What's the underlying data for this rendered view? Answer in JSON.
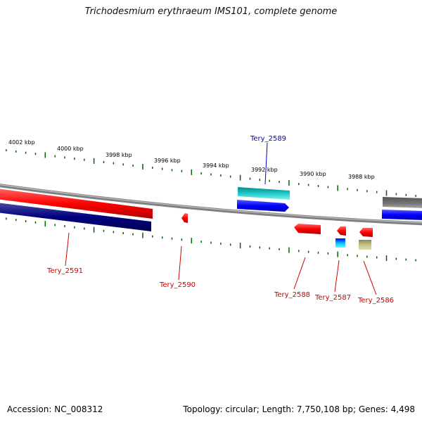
{
  "title": "Trichodesmium erythraeum IMS101, complete genome",
  "scale": {
    "labels": [
      "4002 kbp",
      "4000 kbp",
      "3998 kbp",
      "3996 kbp",
      "3994 kbp",
      "3992 kbp",
      "3990 kbp",
      "3988 kbp"
    ],
    "tick_color": "#006400"
  },
  "backbone_color": "#808080",
  "genes": [
    {
      "label": "Tery_2591",
      "strand": "reverse",
      "color": "#ff0000",
      "label_color": "#cc0000"
    },
    {
      "label": "Tery_2590",
      "strand": "reverse",
      "color": "#ff0000",
      "label_color": "#cc0000"
    },
    {
      "label": "Tery_2589",
      "strand": "forward",
      "color": "#00cccc",
      "label_color": "#0000cc"
    },
    {
      "label": "Tery_2588",
      "strand": "reverse",
      "color": "#ff0000",
      "label_color": "#cc0000"
    },
    {
      "label": "Tery_2587",
      "strand": "reverse",
      "color": "#ff0000",
      "label_color": "#cc0000"
    },
    {
      "label": "Tery_2586",
      "strand": "reverse",
      "color": "#ff0000",
      "label_color": "#cc0000"
    }
  ],
  "footer": {
    "accession": "Accession: NC_008312",
    "summary": "Topology: circular; Length: 7,750,108 bp; Genes: 4,498"
  }
}
